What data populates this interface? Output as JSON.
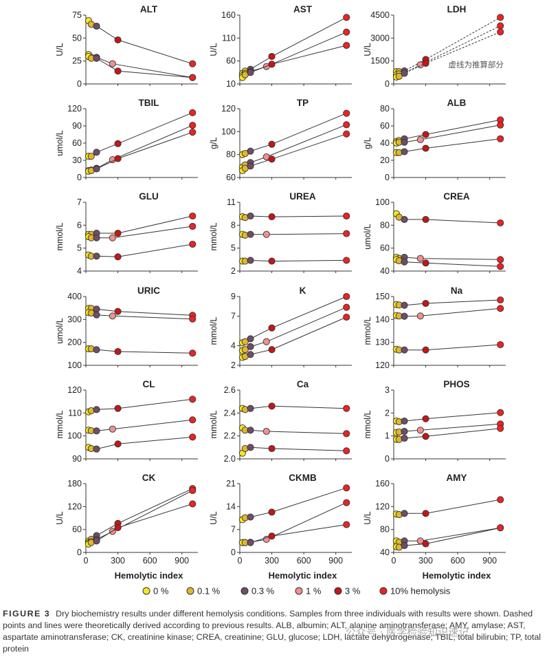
{
  "legend": [
    {
      "label": "0 %",
      "color": "#f6e620"
    },
    {
      "label": "0.1 %",
      "color": "#e3b72a"
    },
    {
      "label": "0.3 %",
      "color": "#6e4e68"
    },
    {
      "label": "1 %",
      "color": "#f09090"
    },
    {
      "label": "3 %",
      "color": "#c41616"
    },
    {
      "label": "10% hemolysis",
      "color": "#ee2222"
    }
  ],
  "caption": {
    "figure_label": "FIGURE 3",
    "text": "Dry biochemistry results under different hemolysis conditions. Samples from three individuals with results were shown. Dashed points and lines were theoretically derived according to previous results. ALB, albumin; ALT, alanine aminotransferase; AMY, amylase; AST, aspartate aminotransferase; CK, creatinine kinase; CREA, creatinine; GLU, glucose; LDH, lactate dehydrogenase; TBIL, total bilirubin; TP, total protein"
  },
  "watermark": "公众号 · 医学检验知识速记",
  "chart_data": [
    {
      "type": "line",
      "title": "ALT",
      "ylabel": "U/L",
      "xlabel": "",
      "ylim": [
        0,
        75
      ],
      "yticks": [
        "0",
        "25",
        "50",
        "75"
      ],
      "xlim": [
        0,
        1050
      ],
      "xticks": [],
      "x": [
        25,
        50,
        100,
        250,
        300,
        1000
      ],
      "series": [
        {
          "values": [
            69,
            65,
            63,
            null,
            48,
            22
          ]
        },
        {
          "values": [
            32,
            29,
            29,
            22,
            null,
            7
          ]
        },
        {
          "values": [
            30,
            28,
            28,
            null,
            14,
            7
          ]
        }
      ]
    },
    {
      "type": "line",
      "title": "AST",
      "ylabel": "U/L",
      "xlabel": "",
      "ylim": [
        10,
        160
      ],
      "yticks": [
        "10",
        "60",
        "110",
        "160"
      ],
      "xlim": [
        0,
        1050
      ],
      "xticks": [],
      "x": [
        25,
        50,
        100,
        250,
        300,
        1000
      ],
      "series": [
        {
          "values": [
            33,
            38,
            42,
            null,
            70,
            155
          ]
        },
        {
          "values": [
            28,
            33,
            37,
            48,
            null,
            123
          ]
        },
        {
          "values": [
            24,
            30,
            35,
            null,
            53,
            94
          ]
        }
      ]
    },
    {
      "type": "line",
      "title": "LDH",
      "ylabel": "U/L",
      "xlabel": "",
      "ylim": [
        0,
        4500
      ],
      "yticks": [
        "0",
        "1500",
        "3000",
        "4500"
      ],
      "xlim": [
        0,
        1050
      ],
      "xticks": [],
      "annotation": "虚线为推算部分",
      "x": [
        25,
        50,
        100,
        250,
        300,
        1000
      ],
      "series": [
        {
          "values": [
            800,
            800,
            850,
            null,
            1600,
            4350
          ],
          "dashed": true
        },
        {
          "values": [
            600,
            650,
            700,
            1250,
            null,
            3800
          ],
          "dashed": true
        },
        {
          "values": [
            450,
            500,
            700,
            null,
            1350,
            3400
          ],
          "dashed": true
        }
      ]
    },
    {
      "type": "line",
      "title": "TBIL",
      "ylabel": "umol/L",
      "xlabel": "",
      "ylim": [
        0,
        120
      ],
      "yticks": [
        "0",
        "30",
        "60",
        "90",
        "120"
      ],
      "xlim": [
        0,
        1050
      ],
      "xticks": [],
      "x": [
        25,
        50,
        100,
        250,
        300,
        1000
      ],
      "series": [
        {
          "values": [
            37,
            37,
            44,
            null,
            59,
            113
          ]
        },
        {
          "values": [
            12,
            13,
            16,
            31,
            null,
            91
          ]
        },
        {
          "values": [
            11,
            12,
            15,
            null,
            33,
            79
          ]
        }
      ]
    },
    {
      "type": "line",
      "title": "TP",
      "ylabel": "g/L",
      "xlabel": "",
      "ylim": [
        60,
        120
      ],
      "yticks": [
        "60",
        "80",
        "100",
        "120"
      ],
      "xlim": [
        0,
        1050
      ],
      "xticks": [],
      "x": [
        25,
        50,
        100,
        250,
        300,
        1000
      ],
      "series": [
        {
          "values": [
            80,
            81,
            83,
            null,
            89,
            116
          ]
        },
        {
          "values": [
            69,
            71,
            73,
            78,
            null,
            106
          ]
        },
        {
          "values": [
            66,
            68,
            70,
            null,
            76,
            98
          ]
        }
      ]
    },
    {
      "type": "line",
      "title": "ALB",
      "ylabel": "g/L",
      "xlabel": "",
      "ylim": [
        0,
        80
      ],
      "yticks": [
        "0",
        "20",
        "40",
        "60",
        "80"
      ],
      "xlim": [
        0,
        1050
      ],
      "xticks": [],
      "x": [
        25,
        50,
        100,
        250,
        300,
        1000
      ],
      "series": [
        {
          "values": [
            42,
            43,
            45,
            null,
            50,
            67
          ]
        },
        {
          "values": [
            40,
            41,
            41,
            44,
            null,
            61
          ]
        },
        {
          "values": [
            29,
            29,
            30,
            null,
            34,
            45
          ]
        }
      ]
    },
    {
      "type": "line",
      "title": "GLU",
      "ylabel": "mmol/L",
      "xlabel": "",
      "ylim": [
        4,
        7
      ],
      "yticks": [
        "4",
        "5",
        "6",
        "7"
      ],
      "xlim": [
        0,
        1050
      ],
      "xticks": [],
      "x": [
        25,
        50,
        100,
        250,
        300,
        1000
      ],
      "series": [
        {
          "values": [
            5.6,
            5.6,
            5.65,
            null,
            5.65,
            6.4
          ]
        },
        {
          "values": [
            5.5,
            5.45,
            5.45,
            5.45,
            null,
            5.95
          ]
        },
        {
          "values": [
            4.7,
            4.65,
            4.65,
            null,
            4.62,
            5.17
          ]
        }
      ]
    },
    {
      "type": "line",
      "title": "UREA",
      "ylabel": "mmol/L",
      "xlabel": "",
      "ylim": [
        2,
        11
      ],
      "yticks": [
        "2",
        "5",
        "8",
        "11"
      ],
      "xlim": [
        0,
        1050
      ],
      "xticks": [],
      "x": [
        25,
        50,
        100,
        250,
        300,
        1000
      ],
      "series": [
        {
          "values": [
            9.1,
            9.0,
            9.2,
            null,
            9.1,
            9.2
          ]
        },
        {
          "values": [
            6.8,
            6.7,
            6.8,
            6.8,
            null,
            6.9
          ]
        },
        {
          "values": [
            3.3,
            3.3,
            3.4,
            null,
            3.3,
            3.4
          ]
        }
      ]
    },
    {
      "type": "line",
      "title": "CREA",
      "ylabel": "umol/L",
      "xlabel": "",
      "ylim": [
        40,
        100
      ],
      "yticks": [
        "40",
        "60",
        "80",
        "100"
      ],
      "xlim": [
        0,
        1050
      ],
      "xticks": [],
      "x": [
        25,
        50,
        100,
        250,
        300,
        1000
      ],
      "series": [
        {
          "values": [
            90,
            87,
            85,
            null,
            85,
            82
          ]
        },
        {
          "values": [
            52,
            51,
            52,
            51,
            null,
            50
          ]
        },
        {
          "values": [
            50,
            49,
            48,
            null,
            47,
            44
          ]
        }
      ]
    },
    {
      "type": "line",
      "title": "URIC",
      "ylabel": "umol/L",
      "xlabel": "",
      "ylim": [
        100,
        400
      ],
      "yticks": [
        "100",
        "200",
        "300",
        "400"
      ],
      "xlim": [
        0,
        1050
      ],
      "xticks": [],
      "x": [
        25,
        50,
        100,
        250,
        300,
        1000
      ],
      "series": [
        {
          "values": [
            348,
            348,
            345,
            null,
            335,
            318
          ]
        },
        {
          "values": [
            330,
            328,
            320,
            315,
            null,
            302
          ]
        },
        {
          "values": [
            172,
            172,
            168,
            null,
            160,
            153
          ]
        }
      ]
    },
    {
      "type": "line",
      "title": "K",
      "ylabel": "mmol/L",
      "xlabel": "",
      "ylim": [
        2,
        9
      ],
      "yticks": [
        "2",
        "4",
        "7",
        "9"
      ],
      "xlim": [
        0,
        1050
      ],
      "xticks": [],
      "x": [
        25,
        50,
        100,
        250,
        300,
        1000
      ],
      "series": [
        {
          "values": [
            4.3,
            4.4,
            4.7,
            null,
            5.8,
            9.0
          ]
        },
        {
          "values": [
            3.5,
            3.6,
            3.9,
            4.4,
            null,
            7.9
          ]
        },
        {
          "values": [
            2.8,
            2.9,
            3.1,
            null,
            3.6,
            6.9
          ]
        }
      ]
    },
    {
      "type": "line",
      "title": "Na",
      "ylabel": "mmol/L",
      "xlabel": "",
      "ylim": [
        120,
        150
      ],
      "yticks": [
        "120",
        "130",
        "140",
        "150"
      ],
      "xlim": [
        0,
        1050
      ],
      "xticks": [],
      "x": [
        25,
        50,
        100,
        250,
        300,
        1000
      ],
      "series": [
        {
          "values": [
            146.5,
            146.3,
            146.2,
            null,
            147,
            148.5
          ]
        },
        {
          "values": [
            141.7,
            141.5,
            141.4,
            141.5,
            null,
            144.8
          ]
        },
        {
          "values": [
            127,
            126.7,
            126.7,
            null,
            126.7,
            129
          ]
        }
      ]
    },
    {
      "type": "line",
      "title": "CL",
      "ylabel": "mmol/L",
      "xlabel": "",
      "ylim": [
        90,
        120
      ],
      "yticks": [
        "90",
        "100",
        "110",
        "120"
      ],
      "xlim": [
        0,
        1050
      ],
      "xticks": [],
      "x": [
        25,
        50,
        100,
        250,
        300,
        1000
      ],
      "series": [
        {
          "values": [
            110.5,
            111,
            111.5,
            null,
            112,
            116
          ]
        },
        {
          "values": [
            102.5,
            102.3,
            102.2,
            103,
            null,
            107
          ]
        },
        {
          "values": [
            95,
            94.5,
            94.3,
            null,
            96.5,
            99.5
          ]
        }
      ]
    },
    {
      "type": "line",
      "title": "Ca",
      "ylabel": "mmol/L",
      "xlabel": "",
      "ylim": [
        2.0,
        2.6
      ],
      "yticks": [
        "2.0",
        "2.2",
        "2.4",
        "2.6"
      ],
      "xlim": [
        0,
        1050
      ],
      "xticks": [],
      "x": [
        25,
        50,
        100,
        250,
        300,
        1000
      ],
      "series": [
        {
          "values": [
            2.44,
            2.43,
            2.44,
            null,
            2.46,
            2.44
          ]
        },
        {
          "values": [
            2.27,
            2.25,
            2.25,
            2.24,
            null,
            2.22
          ]
        },
        {
          "values": [
            2.05,
            2.09,
            2.1,
            null,
            2.09,
            2.07
          ]
        }
      ]
    },
    {
      "type": "line",
      "title": "PHOS",
      "ylabel": "mmol/L",
      "xlabel": "",
      "ylim": [
        0,
        3
      ],
      "yticks": [
        "0",
        "1",
        "2",
        "3"
      ],
      "xlim": [
        0,
        1050
      ],
      "xticks": [],
      "x": [
        25,
        50,
        100,
        250,
        300,
        1000
      ],
      "series": [
        {
          "values": [
            1.65,
            1.62,
            1.65,
            null,
            1.75,
            2.02
          ]
        },
        {
          "values": [
            1.15,
            1.17,
            1.2,
            1.25,
            null,
            1.52
          ]
        },
        {
          "values": [
            0.85,
            0.85,
            0.9,
            null,
            0.98,
            1.33
          ]
        }
      ]
    },
    {
      "type": "line",
      "title": "CK",
      "ylabel": "U/L",
      "xlabel": "Hemolytic index",
      "ylim": [
        0,
        180
      ],
      "yticks": [
        "0",
        "60",
        "120",
        "180"
      ],
      "xlim": [
        0,
        1050
      ],
      "xticks": [
        "0",
        "300",
        "600",
        "900"
      ],
      "x": [
        25,
        50,
        100,
        250,
        300,
        1000
      ],
      "series": [
        {
          "values": [
            30,
            34,
            44,
            null,
            76,
            167
          ]
        },
        {
          "values": [
            25,
            28,
            34,
            55,
            null,
            162
          ]
        },
        {
          "values": [
            22,
            26,
            30,
            null,
            65,
            127
          ]
        }
      ]
    },
    {
      "type": "line",
      "title": "CKMB",
      "ylabel": "U/L",
      "xlabel": "Hemolytic index",
      "ylim": [
        0,
        21
      ],
      "yticks": [
        "0",
        "7",
        "14",
        "21"
      ],
      "xlim": [
        0,
        1050
      ],
      "xticks": [
        "0",
        "300",
        "600",
        "900"
      ],
      "x": [
        25,
        50,
        100,
        250,
        300,
        1000
      ],
      "series": [
        {
          "values": [
            10,
            10.6,
            10.8,
            null,
            12.3,
            19.7
          ]
        },
        {
          "values": [
            3.0,
            3.0,
            3.1,
            4.0,
            null,
            15.2
          ]
        },
        {
          "values": [
            3.0,
            3.0,
            3.0,
            null,
            5.0,
            8.5
          ]
        }
      ]
    },
    {
      "type": "line",
      "title": "AMY",
      "ylabel": "U/L",
      "xlabel": "Hemolytic index",
      "ylim": [
        40,
        160
      ],
      "yticks": [
        "40",
        "80",
        "120",
        "160"
      ],
      "xlim": [
        0,
        1050
      ],
      "xticks": [
        "0",
        "300",
        "600",
        "900"
      ],
      "x": [
        25,
        50,
        100,
        250,
        300,
        1000
      ],
      "series": [
        {
          "values": [
            107,
            106,
            108,
            null,
            108,
            132
          ]
        },
        {
          "values": [
            60,
            58,
            60,
            60,
            null,
            83
          ]
        },
        {
          "values": [
            50,
            49,
            52,
            null,
            55,
            83
          ]
        }
      ]
    }
  ]
}
